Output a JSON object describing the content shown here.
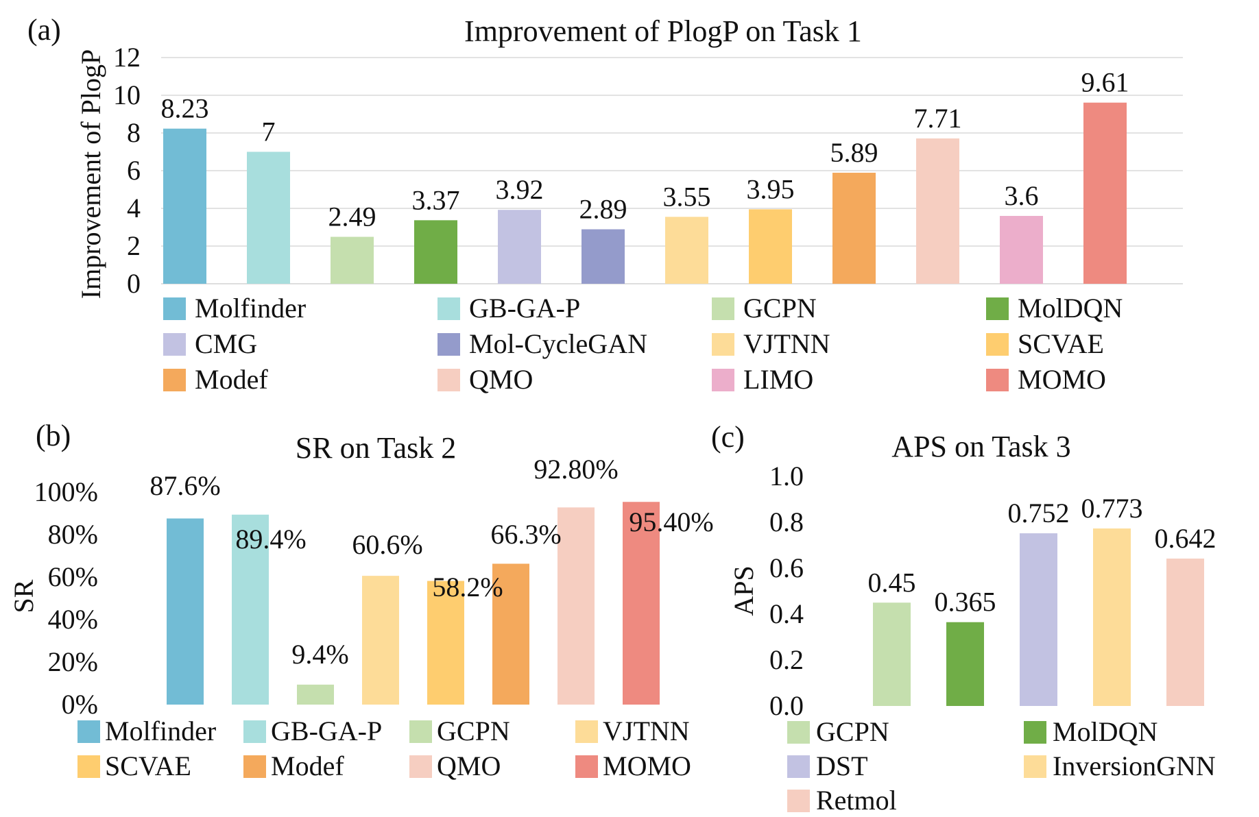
{
  "chart_data": [
    {
      "panel_label": "(a)",
      "type": "bar",
      "title": "Improvement of PlogP on Task 1",
      "xlabel": "",
      "ylabel": "Improvement of PlogP",
      "ylim": [
        0,
        12
      ],
      "yticks": [
        "0",
        "2",
        "4",
        "6",
        "8",
        "10",
        "12"
      ],
      "grid": true,
      "legend_position": "bottom",
      "categories": [
        "Molfinder",
        "GB-GA-P",
        "GCPN",
        "MolDQN",
        "CMG",
        "Mol-CycleGAN",
        "VJTNN",
        "SCVAE",
        "Modef",
        "QMO",
        "LIMO",
        "MOMO"
      ],
      "values": [
        8.23,
        7,
        2.49,
        3.37,
        3.92,
        2.89,
        3.55,
        3.95,
        5.89,
        7.71,
        3.6,
        9.61
      ],
      "data_labels": [
        "8.23",
        "7",
        "2.49",
        "3.37",
        "3.92",
        "2.89",
        "3.55",
        "3.95",
        "5.89",
        "7.71",
        "3.6",
        "9.61"
      ],
      "colors": [
        "#72bcd5",
        "#a8dedd",
        "#c5dfae",
        "#70ad47",
        "#c2c2e2",
        "#949bcb",
        "#fddc98",
        "#fecd6f",
        "#f4a95c",
        "#f6cec1",
        "#ecaecb",
        "#ee8a80"
      ]
    },
    {
      "panel_label": "(b)",
      "type": "bar",
      "title": "SR on Task 2",
      "xlabel": "",
      "ylabel": "SR",
      "ylim": [
        0,
        100
      ],
      "yticks": [
        "0%",
        "20%",
        "40%",
        "60%",
        "80%",
        "100%"
      ],
      "grid": false,
      "legend_position": "bottom",
      "categories": [
        "Molfinder",
        "GB-GA-P",
        "GCPN",
        "VJTNN",
        "SCVAE",
        "Modef",
        "QMO",
        "MOMO"
      ],
      "values": [
        87.6,
        89.4,
        9.4,
        60.6,
        58.2,
        66.3,
        92.8,
        95.4
      ],
      "data_labels": [
        "87.6%",
        "89.4%",
        "9.4%",
        "60.6%",
        "58.2%",
        "66.3%",
        "92.80%",
        "95.40%"
      ],
      "colors": [
        "#72bcd5",
        "#a8dedd",
        "#c5dfae",
        "#fddc98",
        "#fecd6f",
        "#f4a95c",
        "#f6cec1",
        "#ee8a80"
      ]
    },
    {
      "panel_label": "(c)",
      "type": "bar",
      "title": "APS on Task 3",
      "xlabel": "",
      "ylabel": "APS",
      "ylim": [
        0,
        1.0
      ],
      "yticks": [
        "0.0",
        "0.2",
        "0.4",
        "0.6",
        "0.8",
        "1.0"
      ],
      "grid": false,
      "legend_position": "bottom",
      "categories": [
        "GCPN",
        "MolDQN",
        "DST",
        "InversionGNN",
        "Retmol"
      ],
      "values": [
        0.45,
        0.365,
        0.752,
        0.773,
        0.642
      ],
      "data_labels": [
        "0.45",
        "0.365",
        "0.752",
        "0.773",
        "0.642"
      ],
      "colors": [
        "#c5dfae",
        "#70ad47",
        "#c2c2e2",
        "#fddc98",
        "#f6cec1"
      ]
    }
  ]
}
